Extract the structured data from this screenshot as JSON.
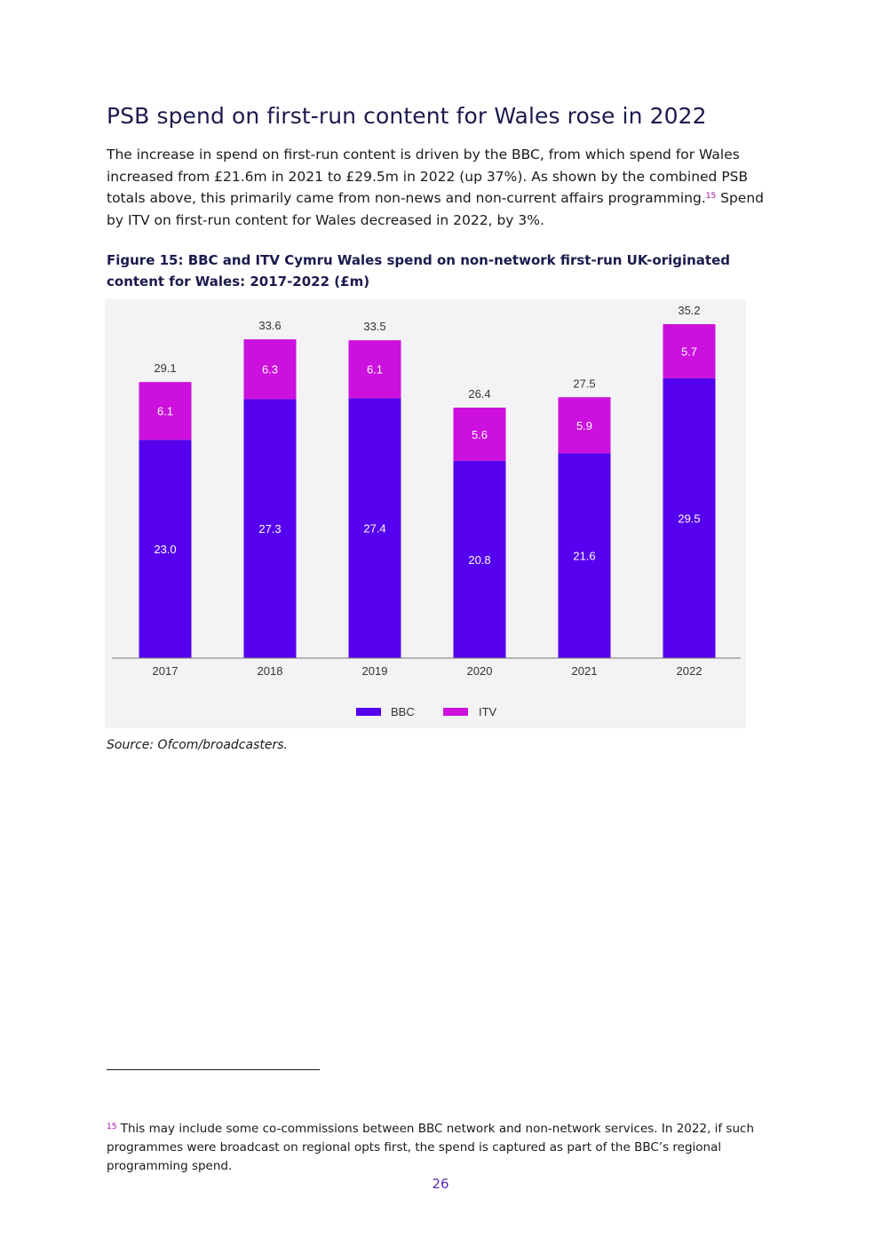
{
  "page": {
    "heading": "PSB spend on first-run content for Wales rose in 2022",
    "paragraph_before_ref": "The increase in spend on first-run content is driven by the BBC, from which spend for Wales increased from £21.6m in 2021 to £29.5m in 2022 (up 37%). As shown by the combined PSB totals above, this primarily came from non-news and non-current affairs programming.",
    "paragraph_ref": "15",
    "paragraph_after_ref": " Spend by ITV on first-run content for Wales decreased in 2022, by 3%.",
    "figure_title": "Figure 15: BBC and ITV Cymru Wales spend on non-network first-run UK-originated content for Wales: 2017-2022 (£m)",
    "source": "Source: Ofcom/broadcasters.",
    "footnote_ref": "15",
    "footnote_text": " This may include some co-commissions between BBC network and non-network services. In 2022, if such programmes were broadcast on regional opts first, the spend is captured as part of the BBC’s regional programming spend.",
    "page_number": "26"
  },
  "colors": {
    "bbc": "#5500ee",
    "itv": "#cc10dd",
    "heading": "#1c1a4d",
    "chart_bg": "#f3f3f5"
  },
  "chart_data": {
    "type": "bar",
    "stacked": true,
    "title": "Figure 15: BBC and ITV Cymru Wales spend on non-network first-run UK-originated content for Wales: 2017-2022 (£m)",
    "categories": [
      "2017",
      "2018",
      "2019",
      "2020",
      "2021",
      "2022"
    ],
    "series": [
      {
        "name": "BBC",
        "values": [
          23.0,
          27.3,
          27.4,
          20.8,
          21.6,
          29.5
        ],
        "labels": [
          "23.0",
          "27.3",
          "27.4",
          "20.8",
          "21.6",
          "29.5"
        ]
      },
      {
        "name": "ITV",
        "values": [
          6.1,
          6.3,
          6.1,
          5.6,
          5.9,
          5.7
        ],
        "labels": [
          "6.1",
          "6.3",
          "6.1",
          "5.6",
          "5.9",
          "5.7"
        ]
      }
    ],
    "totals": [
      29.1,
      33.6,
      33.5,
      26.4,
      27.5,
      35.2
    ],
    "total_labels": [
      "29.1",
      "33.6",
      "33.5",
      "26.4",
      "27.5",
      "35.2"
    ],
    "legend": [
      "BBC",
      "ITV"
    ],
    "legend_position": "bottom",
    "xlabel": "",
    "ylabel": "",
    "ylim": [
      0,
      35.2
    ],
    "grid": false
  }
}
